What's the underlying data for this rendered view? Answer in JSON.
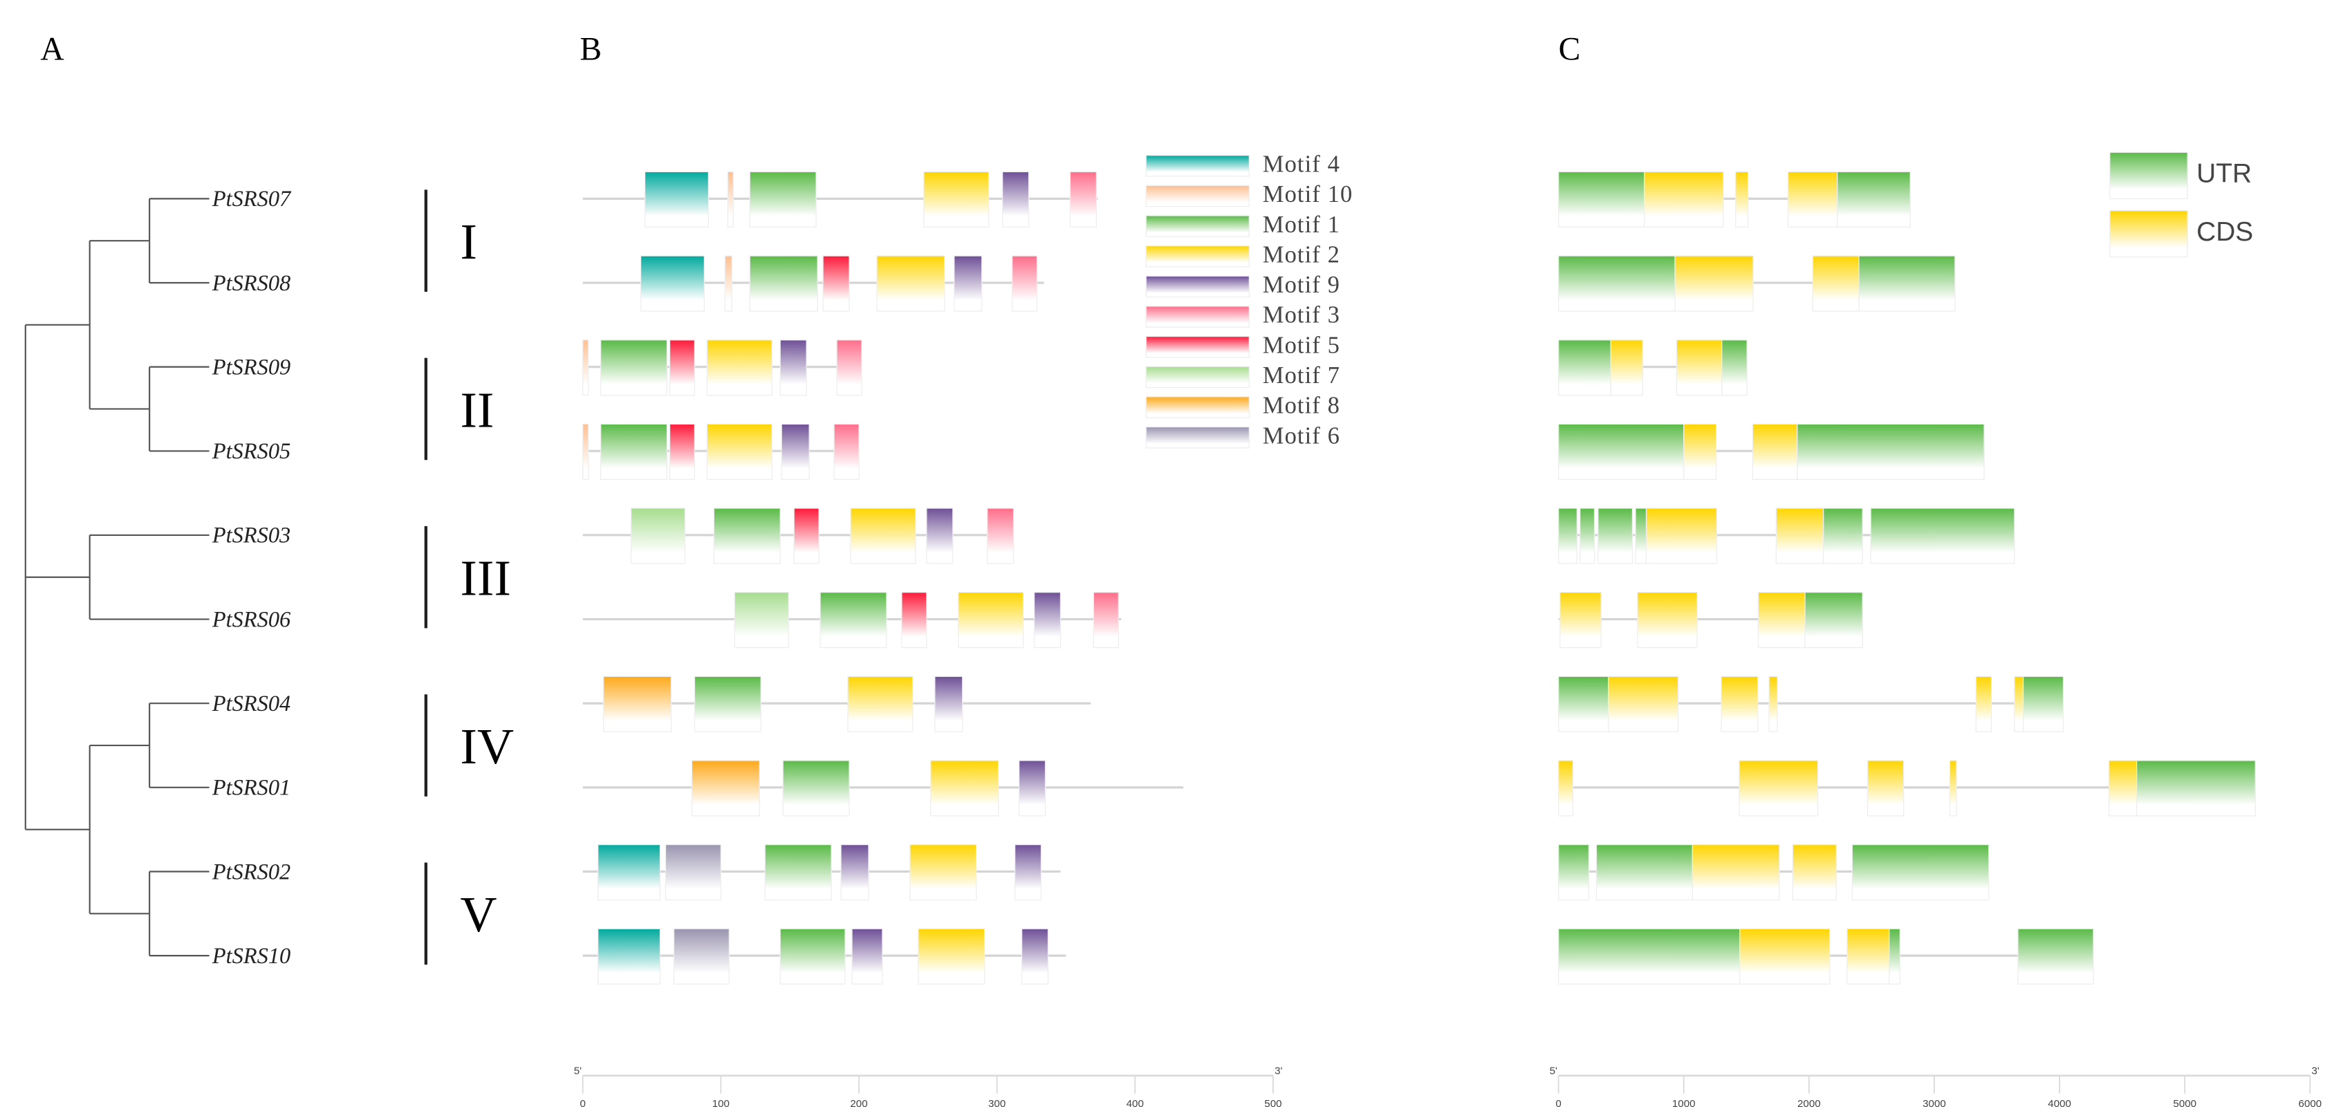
{
  "panels": {
    "a": "A",
    "b": "B",
    "c": "C"
  },
  "tree": {
    "leaves": [
      "PtSRS07",
      "PtSRS08",
      "PtSRS09",
      "PtSRS05",
      "PtSRS03",
      "PtSRS06",
      "PtSRS04",
      "PtSRS01",
      "PtSRS02",
      "PtSRS10"
    ],
    "clades": [
      {
        "label": "I",
        "members": [
          0,
          1
        ]
      },
      {
        "label": "II",
        "members": [
          2,
          3
        ]
      },
      {
        "label": "III",
        "members": [
          4,
          5
        ]
      },
      {
        "label": "IV",
        "members": [
          6,
          7
        ]
      },
      {
        "label": "V",
        "members": [
          8,
          9
        ]
      }
    ]
  },
  "motif_legend": [
    {
      "id": "4",
      "label": "Motif 4",
      "color": "#00a99d"
    },
    {
      "id": "10",
      "label": "Motif 10",
      "color": "#ffbf90"
    },
    {
      "id": "1",
      "label": "Motif 1",
      "color": "#5aba47"
    },
    {
      "id": "2",
      "label": "Motif 2",
      "color": "#ffd500"
    },
    {
      "id": "9",
      "label": "Motif 9",
      "color": "#6e5096"
    },
    {
      "id": "3",
      "label": "Motif 3",
      "color": "#ff6d8a"
    },
    {
      "id": "5",
      "label": "Motif 5",
      "color": "#ff1a3a"
    },
    {
      "id": "7",
      "label": "Motif 7",
      "color": "#a6dd8e"
    },
    {
      "id": "8",
      "label": "Motif 8",
      "color": "#ffa91a"
    },
    {
      "id": "6",
      "label": "Motif 6",
      "color": "#9a94b0"
    }
  ],
  "motif_axis": {
    "min": 0,
    "max": 500,
    "ticks": [
      "0",
      "100",
      "200",
      "300",
      "400",
      "500"
    ],
    "end5": "5'",
    "end3": "3'"
  },
  "motifs": [
    {
      "length": 373,
      "motifs": [
        [
          "4",
          45,
          91
        ],
        [
          "10",
          105,
          109
        ],
        [
          "1",
          121,
          169
        ],
        [
          "2",
          247,
          294
        ],
        [
          "9",
          304,
          323
        ],
        [
          "3",
          353,
          372
        ]
      ]
    },
    {
      "length": 334,
      "motifs": [
        [
          "4",
          42,
          88
        ],
        [
          "10",
          103,
          108
        ],
        [
          "1",
          121,
          170
        ],
        [
          "5",
          174,
          193
        ],
        [
          "2",
          213,
          262
        ],
        [
          "9",
          269,
          289
        ],
        [
          "3",
          311,
          329
        ]
      ]
    },
    {
      "length": 202,
      "motifs": [
        [
          "10",
          0,
          4
        ],
        [
          "1",
          13,
          61
        ],
        [
          "5",
          63,
          81
        ],
        [
          "2",
          90,
          137
        ],
        [
          "9",
          143,
          162
        ],
        [
          "3",
          184,
          202
        ]
      ]
    },
    {
      "length": 200,
      "motifs": [
        [
          "10",
          0,
          4
        ],
        [
          "1",
          13,
          61
        ],
        [
          "5",
          63,
          81
        ],
        [
          "2",
          90,
          137
        ],
        [
          "9",
          144,
          164
        ],
        [
          "3",
          182,
          200
        ]
      ]
    },
    {
      "length": 312,
      "motifs": [
        [
          "7",
          35,
          74
        ],
        [
          "1",
          95,
          143
        ],
        [
          "5",
          153,
          171
        ],
        [
          "2",
          194,
          241
        ],
        [
          "9",
          249,
          268
        ],
        [
          "3",
          293,
          312
        ]
      ]
    },
    {
      "length": 390,
      "motifs": [
        [
          "7",
          110,
          149
        ],
        [
          "1",
          172,
          220
        ],
        [
          "5",
          231,
          249
        ],
        [
          "2",
          272,
          319
        ],
        [
          "9",
          327,
          346
        ],
        [
          "3",
          370,
          388
        ]
      ]
    },
    {
      "length": 368,
      "motifs": [
        [
          "8",
          15,
          64
        ],
        [
          "1",
          81,
          129
        ],
        [
          "2",
          192,
          239
        ],
        [
          "9",
          255,
          275
        ]
      ]
    },
    {
      "length": 435,
      "motifs": [
        [
          "8",
          79,
          128
        ],
        [
          "1",
          145,
          193
        ],
        [
          "2",
          252,
          301
        ],
        [
          "9",
          316,
          335
        ]
      ]
    },
    {
      "length": 346,
      "motifs": [
        [
          "4",
          11,
          56
        ],
        [
          "6",
          60,
          100
        ],
        [
          "1",
          132,
          180
        ],
        [
          "9",
          187,
          207
        ],
        [
          "2",
          237,
          285
        ],
        [
          "9",
          313,
          332
        ]
      ]
    },
    {
      "length": 350,
      "motifs": [
        [
          "4",
          11,
          56
        ],
        [
          "6",
          66,
          106
        ],
        [
          "1",
          143,
          190
        ],
        [
          "9",
          195,
          217
        ],
        [
          "2",
          243,
          291
        ],
        [
          "9",
          318,
          337
        ]
      ]
    }
  ],
  "structure_legend": [
    {
      "type": "UTR",
      "label": "UTR",
      "color": "#5aba47"
    },
    {
      "type": "CDS",
      "label": "CDS",
      "color": "#ffd500"
    }
  ],
  "structure_axis": {
    "min": 0,
    "max": 6000,
    "ticks": [
      "0",
      "1000",
      "2000",
      "3000",
      "4000",
      "5000",
      "6000"
    ],
    "end5": "5'",
    "end3": "3'"
  },
  "structures": [
    {
      "length": 2808,
      "features": [
        [
          "UTR",
          0,
          685
        ],
        [
          "CDS",
          685,
          1316
        ],
        [
          "CDS",
          1414,
          1513
        ],
        [
          "CDS",
          1833,
          2226
        ],
        [
          "UTR",
          2226,
          2808
        ]
      ]
    },
    {
      "length": 3165,
      "features": [
        [
          "UTR",
          0,
          930
        ],
        [
          "CDS",
          930,
          1554
        ],
        [
          "CDS",
          2030,
          2398
        ],
        [
          "UTR",
          2398,
          3165
        ]
      ]
    },
    {
      "length": 1505,
      "features": [
        [
          "UTR",
          0,
          418
        ],
        [
          "CDS",
          418,
          672
        ],
        [
          "CDS",
          943,
          1304
        ],
        [
          "UTR",
          1304,
          1505
        ]
      ]
    },
    {
      "length": 3398,
      "features": [
        [
          "UTR",
          0,
          1000
        ],
        [
          "CDS",
          1000,
          1259
        ],
        [
          "CDS",
          1550,
          1906
        ],
        [
          "UTR",
          1906,
          3398
        ]
      ]
    },
    {
      "length": 3640,
      "features": [
        [
          "UTR",
          0,
          148
        ],
        [
          "UTR",
          172,
          287
        ],
        [
          "UTR",
          316,
          590
        ],
        [
          "UTR",
          615,
          701
        ],
        [
          "CDS",
          701,
          1263
        ],
        [
          "CDS",
          1738,
          2115
        ],
        [
          "UTR",
          2115,
          2427
        ],
        [
          "UTR",
          2493,
          3640
        ]
      ]
    },
    {
      "length": 2427,
      "features": [
        [
          "CDS",
          12,
          340
        ],
        [
          "CDS",
          631,
          1107
        ],
        [
          "CDS",
          1595,
          1968
        ],
        [
          "UTR",
          1968,
          2427
        ]
      ]
    },
    {
      "length": 4030,
      "features": [
        [
          "UTR",
          0,
          398
        ],
        [
          "CDS",
          398,
          955
        ],
        [
          "CDS",
          1300,
          1591
        ],
        [
          "CDS",
          1681,
          1747
        ],
        [
          "CDS",
          3333,
          3456
        ],
        [
          "CDS",
          3640,
          3710
        ],
        [
          "UTR",
          3710,
          4030
        ]
      ]
    },
    {
      "length": 5563,
      "features": [
        [
          "CDS",
          0,
          115
        ],
        [
          "CDS",
          1443,
          2070
        ],
        [
          "CDS",
          2468,
          2755
        ],
        [
          "CDS",
          3124,
          3177
        ],
        [
          "CDS",
          4395,
          4616
        ],
        [
          "UTR",
          4616,
          5563
        ]
      ]
    },
    {
      "length": 3435,
      "features": [
        [
          "UTR",
          0,
          242
        ],
        [
          "UTR",
          303,
          1070
        ],
        [
          "CDS",
          1070,
          1763
        ],
        [
          "CDS",
          1870,
          2218
        ],
        [
          "UTR",
          2345,
          3435
        ]
      ]
    },
    {
      "length": 4270,
      "features": [
        [
          "UTR",
          0,
          1447
        ],
        [
          "CDS",
          1447,
          2165
        ],
        [
          "CDS",
          2304,
          2640
        ],
        [
          "UTR",
          2640,
          2726
        ],
        [
          "UTR",
          3668,
          4270
        ]
      ]
    }
  ]
}
